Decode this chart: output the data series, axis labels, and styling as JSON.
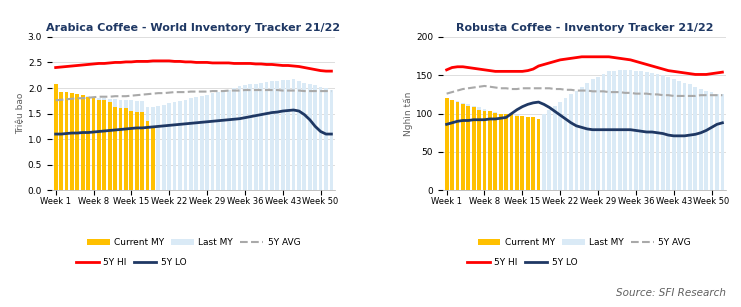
{
  "arabica": {
    "title": "Arabica Coffee - World Inventory Tracker 21/22",
    "ylabel": "Triệu bao",
    "ylim": [
      0.0,
      3.0
    ],
    "yticks": [
      0.0,
      0.5,
      1.0,
      1.5,
      2.0,
      2.5,
      3.0
    ],
    "xtick_labels": [
      "Week 1",
      "Week 8",
      "Week 15",
      "Week 22",
      "Week 29",
      "Week 36",
      "Week 43",
      "Week 50"
    ],
    "n_weeks": 52,
    "current_my": [
      2.08,
      1.92,
      1.92,
      1.9,
      1.88,
      1.87,
      1.83,
      1.8,
      1.77,
      1.76,
      1.73,
      1.62,
      1.61,
      1.6,
      1.55,
      1.54,
      1.53,
      1.35,
      1.23,
      null,
      null,
      null,
      null,
      null,
      null,
      null,
      null,
      null,
      null,
      null,
      null,
      null,
      null,
      null,
      null,
      null,
      null,
      null,
      null,
      null,
      null,
      null,
      null,
      null,
      null,
      null,
      null,
      null,
      null,
      null,
      null,
      null
    ],
    "last_my": [
      1.75,
      1.9,
      1.9,
      1.88,
      1.87,
      1.85,
      1.84,
      1.82,
      1.81,
      1.8,
      1.79,
      1.78,
      1.77,
      1.77,
      1.76,
      1.75,
      1.74,
      1.62,
      1.62,
      1.65,
      1.67,
      1.7,
      1.72,
      1.75,
      1.77,
      1.8,
      1.82,
      1.85,
      1.87,
      1.9,
      1.92,
      1.95,
      1.97,
      2.0,
      2.03,
      2.05,
      2.08,
      2.08,
      2.1,
      2.12,
      2.13,
      2.14,
      2.15,
      2.16,
      2.17,
      2.13,
      2.1,
      2.08,
      2.05,
      2.02,
      2.0,
      1.97
    ],
    "avg_5y": [
      1.76,
      1.77,
      1.78,
      1.79,
      1.8,
      1.8,
      1.81,
      1.82,
      1.83,
      1.83,
      1.83,
      1.84,
      1.84,
      1.84,
      1.85,
      1.86,
      1.87,
      1.88,
      1.89,
      1.9,
      1.9,
      1.91,
      1.92,
      1.92,
      1.92,
      1.93,
      1.93,
      1.93,
      1.93,
      1.94,
      1.94,
      1.94,
      1.95,
      1.95,
      1.95,
      1.96,
      1.96,
      1.96,
      1.96,
      1.96,
      1.96,
      1.96,
      1.95,
      1.95,
      1.95,
      1.95,
      1.94,
      1.94,
      1.94,
      1.94,
      1.94,
      1.94
    ],
    "hi_5y": [
      2.4,
      2.41,
      2.42,
      2.43,
      2.44,
      2.45,
      2.46,
      2.47,
      2.48,
      2.48,
      2.49,
      2.5,
      2.5,
      2.51,
      2.51,
      2.52,
      2.52,
      2.52,
      2.53,
      2.53,
      2.53,
      2.53,
      2.52,
      2.52,
      2.51,
      2.51,
      2.5,
      2.5,
      2.5,
      2.49,
      2.49,
      2.49,
      2.49,
      2.48,
      2.48,
      2.48,
      2.48,
      2.47,
      2.47,
      2.46,
      2.46,
      2.45,
      2.44,
      2.44,
      2.43,
      2.42,
      2.4,
      2.38,
      2.36,
      2.34,
      2.33,
      2.33
    ],
    "lo_5y": [
      1.1,
      1.1,
      1.11,
      1.12,
      1.12,
      1.13,
      1.13,
      1.14,
      1.15,
      1.16,
      1.17,
      1.18,
      1.19,
      1.2,
      1.21,
      1.22,
      1.22,
      1.23,
      1.24,
      1.25,
      1.26,
      1.27,
      1.28,
      1.29,
      1.3,
      1.31,
      1.32,
      1.33,
      1.34,
      1.35,
      1.36,
      1.37,
      1.38,
      1.39,
      1.4,
      1.42,
      1.44,
      1.46,
      1.48,
      1.5,
      1.52,
      1.53,
      1.55,
      1.56,
      1.57,
      1.55,
      1.48,
      1.38,
      1.25,
      1.15,
      1.1,
      1.1
    ]
  },
  "robusta": {
    "title": "Robusta Coffee - Inventory Tracker 21/22",
    "ylabel": "Nghìn tấn",
    "ylim": [
      0,
      200
    ],
    "yticks": [
      0,
      50,
      100,
      150,
      200
    ],
    "xtick_labels": [
      "Week 1",
      "Week 8",
      "Week 15",
      "Week 22",
      "Week 29",
      "Week 36",
      "Week 43",
      "Week 50"
    ],
    "n_weeks": 52,
    "current_my": [
      120,
      118,
      115,
      113,
      110,
      108,
      105,
      104,
      103,
      101,
      100,
      100,
      99,
      97,
      97,
      96,
      95,
      93,
      null,
      null,
      null,
      null,
      null,
      null,
      null,
      null,
      null,
      null,
      null,
      null,
      null,
      null,
      null,
      null,
      null,
      null,
      null,
      null,
      null,
      null,
      null,
      null,
      null,
      null,
      null,
      null,
      null,
      null,
      null,
      null,
      null,
      null
    ],
    "last_my": [
      120,
      118,
      116,
      114,
      112,
      110,
      108,
      106,
      104,
      102,
      100,
      100,
      99,
      98,
      97,
      96,
      95,
      93,
      100,
      105,
      110,
      115,
      120,
      125,
      130,
      135,
      140,
      145,
      148,
      152,
      155,
      156,
      157,
      157,
      157,
      156,
      155,
      154,
      153,
      152,
      150,
      148,
      145,
      142,
      140,
      138,
      135,
      132,
      130,
      128,
      126,
      125
    ],
    "avg_5y": [
      126,
      128,
      130,
      132,
      133,
      134,
      135,
      136,
      135,
      134,
      133,
      133,
      132,
      132,
      133,
      133,
      133,
      133,
      133,
      133,
      132,
      132,
      131,
      131,
      130,
      130,
      130,
      129,
      129,
      129,
      128,
      128,
      128,
      127,
      127,
      126,
      126,
      126,
      125,
      125,
      124,
      124,
      123,
      123,
      123,
      123,
      123,
      124,
      124,
      124,
      124,
      124
    ],
    "hi_5y": [
      157,
      160,
      161,
      161,
      160,
      159,
      158,
      157,
      156,
      155,
      155,
      155,
      155,
      155,
      155,
      156,
      158,
      162,
      164,
      166,
      168,
      170,
      171,
      172,
      173,
      174,
      174,
      174,
      174,
      174,
      174,
      173,
      172,
      171,
      170,
      168,
      166,
      164,
      162,
      160,
      158,
      156,
      155,
      154,
      153,
      152,
      151,
      151,
      151,
      152,
      153,
      154
    ],
    "lo_5y": [
      86,
      88,
      90,
      91,
      91,
      92,
      92,
      92,
      93,
      93,
      94,
      95,
      100,
      105,
      109,
      112,
      114,
      115,
      112,
      108,
      103,
      98,
      93,
      88,
      84,
      82,
      80,
      79,
      79,
      79,
      79,
      79,
      79,
      79,
      79,
      78,
      77,
      76,
      76,
      75,
      74,
      72,
      71,
      71,
      71,
      72,
      73,
      75,
      78,
      82,
      86,
      88
    ]
  },
  "colors": {
    "current_my_bar": "#FFC000",
    "last_my_bar": "#DAEAF6",
    "avg_5y_line": "#A9A9A9",
    "hi_5y_line": "#FF0000",
    "lo_5y_line": "#1F3864",
    "title_color": "#1F3864",
    "source_color": "#606060"
  },
  "source_text": "Source: SFI Research"
}
